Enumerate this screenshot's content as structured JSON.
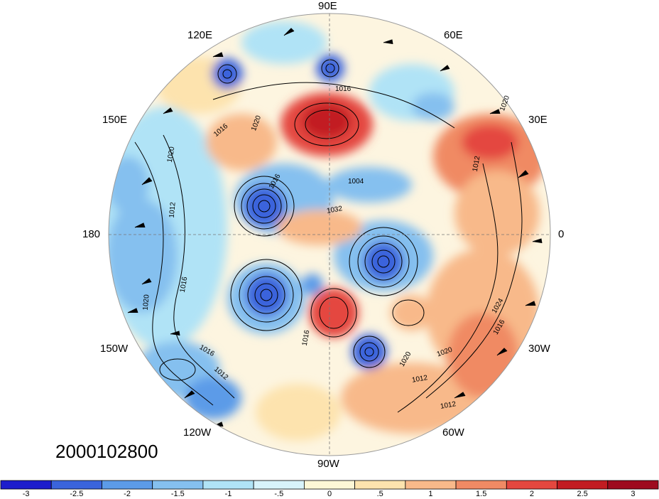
{
  "date_stamp": "2000102800",
  "longitude_labels": {
    "e90": "90E",
    "e60": "60E",
    "e30": "30E",
    "zero": "0",
    "w30": "30W",
    "w60": "60W",
    "w90": "90W",
    "w120": "120W",
    "w150": "150W",
    "d180": "180",
    "e150": "150E",
    "e120": "120E"
  },
  "colorbar": {
    "colors": [
      "#1d1dcc",
      "#3a64dc",
      "#5c9be8",
      "#85c0ef",
      "#b0e3f6",
      "#d8f3fb",
      "#fdf7d6",
      "#fde3ae",
      "#f8b98a",
      "#f08a64",
      "#e4473f",
      "#c21c22",
      "#9e0a1e"
    ],
    "tick_labels": [
      "-3",
      "-2.5",
      "-2",
      "-1.5",
      "-1",
      "-.5",
      "0",
      ".5",
      "1",
      "1.5",
      "2",
      "2.5",
      "3"
    ]
  },
  "contour_labels": [
    "1016",
    "1020",
    "1012",
    "1016",
    "1016",
    "1012",
    "1020",
    "1004",
    "1032",
    "1016",
    "1012",
    "1020",
    "1012",
    "1020",
    "1024",
    "1016",
    "1020",
    "1016",
    "1012",
    "1016",
    "1020"
  ],
  "icons": {
    "map": "polar-stereographic-map",
    "colorbar": "anomaly-colorbar"
  }
}
